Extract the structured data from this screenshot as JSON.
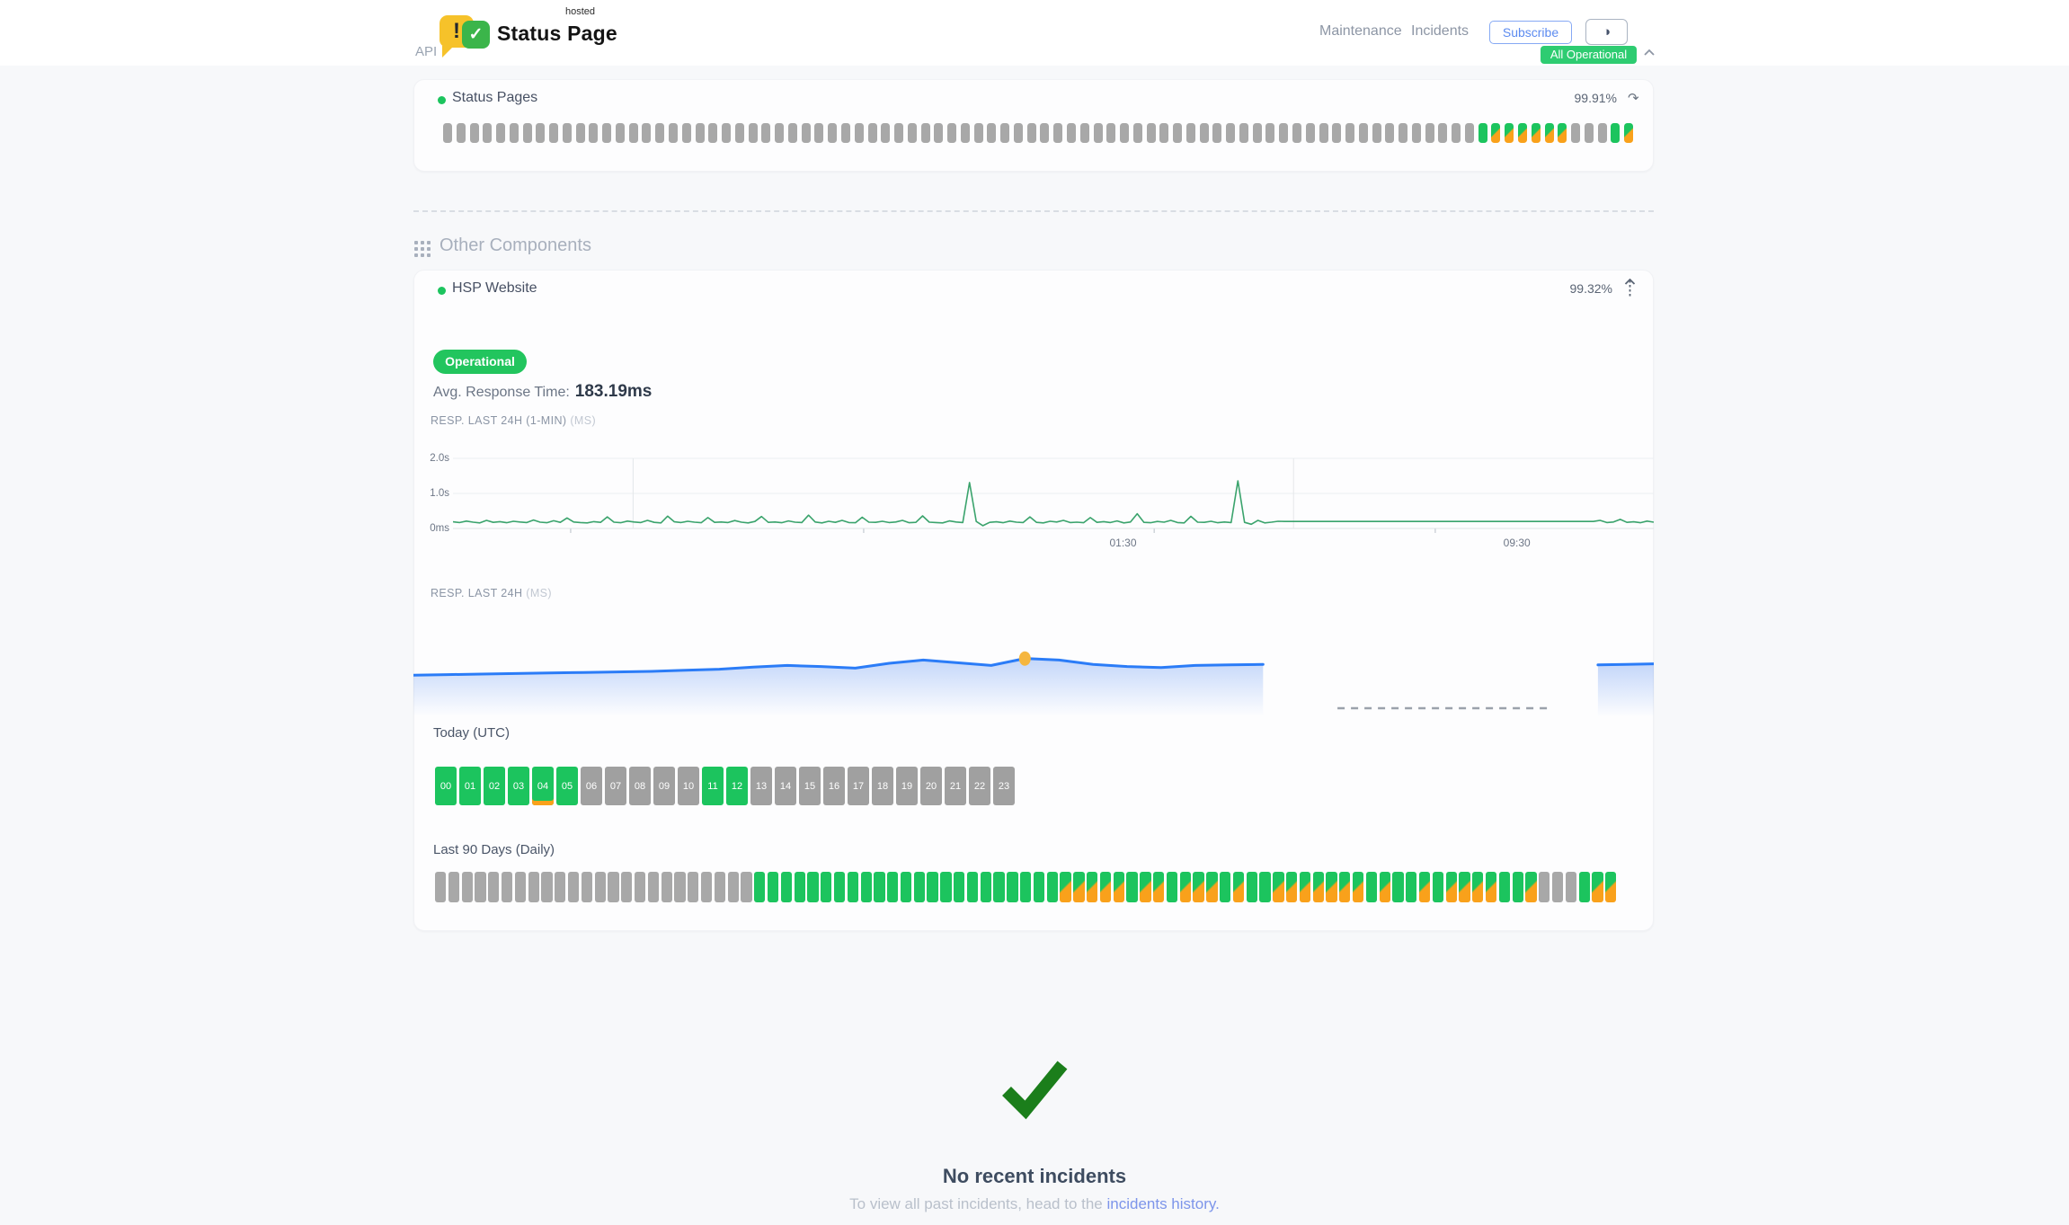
{
  "header": {
    "brand": {
      "title": "Status Page",
      "hosted_tag": "hosted",
      "bubble_char": "!",
      "check_char": "✓"
    },
    "nav": [
      {
        "label": "Maintenance"
      },
      {
        "label": "Incidents"
      }
    ],
    "subscribe_label": "Subscribe",
    "theme_icon": "◑",
    "status_badge": "All Operational"
  },
  "legend": {
    "u": "operational",
    "p": "partial-degradation",
    "n": "no-data"
  },
  "sections": {
    "api": {
      "title": "API",
      "component": {
        "name": "Status Pages",
        "uptime": "99.91%",
        "refresh_icon": "↷",
        "bars": [
          "n",
          "n",
          "n",
          "n",
          "n",
          "n",
          "n",
          "n",
          "n",
          "n",
          "n",
          "n",
          "n",
          "n",
          "n",
          "n",
          "n",
          "n",
          "n",
          "n",
          "n",
          "n",
          "n",
          "n",
          "n",
          "n",
          "n",
          "n",
          "n",
          "n",
          "n",
          "n",
          "n",
          "n",
          "n",
          "n",
          "n",
          "n",
          "n",
          "n",
          "n",
          "n",
          "n",
          "n",
          "n",
          "n",
          "n",
          "n",
          "n",
          "n",
          "n",
          "n",
          "n",
          "n",
          "n",
          "n",
          "n",
          "n",
          "n",
          "n",
          "n",
          "n",
          "n",
          "n",
          "n",
          "n",
          "n",
          "n",
          "n",
          "n",
          "n",
          "n",
          "n",
          "n",
          "n",
          "n",
          "n",
          "n",
          "u",
          "p",
          "p",
          "p",
          "p",
          "p",
          "p",
          "n",
          "n",
          "n",
          "u",
          "p"
        ]
      }
    },
    "other": {
      "title": "Other Components",
      "component": {
        "name": "HSP Website",
        "uptime": "99.32%",
        "status_label": "Operational",
        "avg_label": "Avg. Response Time:",
        "avg_value": "183.19ms",
        "resp1_label": "RESP. LAST 24H (1-MIN)",
        "resp1_unit": "(MS)",
        "resp2_label": "RESP. LAST 24H",
        "resp2_unit": "(MS)"
      }
    }
  },
  "today": {
    "title": "Today (UTC)",
    "marked_hour": "04",
    "hours": [
      {
        "label": "00",
        "state": "u"
      },
      {
        "label": "01",
        "state": "u"
      },
      {
        "label": "02",
        "state": "u"
      },
      {
        "label": "03",
        "state": "u"
      },
      {
        "label": "04",
        "state": "u"
      },
      {
        "label": "05",
        "state": "u"
      },
      {
        "label": "06",
        "state": "n"
      },
      {
        "label": "07",
        "state": "n"
      },
      {
        "label": "08",
        "state": "n"
      },
      {
        "label": "09",
        "state": "n"
      },
      {
        "label": "10",
        "state": "n"
      },
      {
        "label": "11",
        "state": "u"
      },
      {
        "label": "12",
        "state": "u"
      },
      {
        "label": "13",
        "state": "n"
      },
      {
        "label": "14",
        "state": "n"
      },
      {
        "label": "15",
        "state": "n"
      },
      {
        "label": "16",
        "state": "n"
      },
      {
        "label": "17",
        "state": "n"
      },
      {
        "label": "18",
        "state": "n"
      },
      {
        "label": "19",
        "state": "n"
      },
      {
        "label": "20",
        "state": "n"
      },
      {
        "label": "21",
        "state": "n"
      },
      {
        "label": "22",
        "state": "n"
      },
      {
        "label": "23",
        "state": "n"
      }
    ]
  },
  "last90": {
    "title": "Last 90 Days (Daily)",
    "days": [
      "n",
      "n",
      "n",
      "n",
      "n",
      "n",
      "n",
      "n",
      "n",
      "n",
      "n",
      "n",
      "n",
      "n",
      "n",
      "n",
      "n",
      "n",
      "n",
      "n",
      "n",
      "n",
      "n",
      "n",
      "u",
      "u",
      "u",
      "u",
      "u",
      "u",
      "u",
      "u",
      "u",
      "u",
      "u",
      "u",
      "u",
      "u",
      "u",
      "u",
      "u",
      "u",
      "u",
      "u",
      "u",
      "u",
      "u",
      "p",
      "p",
      "p",
      "p",
      "p",
      "u",
      "p",
      "p",
      "u",
      "p",
      "p",
      "p",
      "u",
      "p",
      "u",
      "u",
      "p",
      "p",
      "p",
      "p",
      "p",
      "p",
      "p",
      "u",
      "p",
      "u",
      "u",
      "p",
      "u",
      "p",
      "p",
      "p",
      "p",
      "u",
      "u",
      "p",
      "n",
      "n",
      "n",
      "u",
      "p",
      "p"
    ]
  },
  "incidents": {
    "title": "No recent incidents",
    "subtitle_prefix": "To view all past incidents, head to the ",
    "link_text": "incidents history."
  },
  "colors": {
    "operational_green": "#1cc45e",
    "degraded_orange": "#F9A11B",
    "no_data_gray": "#a8a8a8",
    "badge_green": "#2ecc71",
    "link_blue": "#7d95ea",
    "chart1_line": "#3aa36c",
    "chart2_line": "#2b7cf7",
    "marker_amber": "#F5B63F",
    "check_green": "#1b7e1b"
  },
  "chart_data": [
    {
      "type": "line",
      "title": "RESP. LAST 24H (1-MIN)",
      "unit": "MS",
      "ylabels": [
        "2.0s",
        "1.0s",
        "0ms"
      ],
      "ylim_ms": [
        0,
        2000
      ],
      "xticklabels": [
        "01:30",
        "09:30"
      ],
      "xtick_label_pos_pct": [
        55.8,
        88.6
      ],
      "xtick_marks_pct": [
        9.8,
        34.2,
        58.4,
        81.8
      ],
      "vgrid_pct": [
        15,
        70
      ],
      "grid": true,
      "series": [
        {
          "name": "response_ms",
          "values": [
            190,
            170,
            210,
            180,
            160,
            230,
            175,
            195,
            165,
            205,
            185,
            170,
            240,
            180,
            165,
            220,
            175,
            300,
            185,
            170,
            160,
            195,
            175,
            330,
            180,
            165,
            210,
            185,
            170,
            230,
            175,
            160,
            350,
            190,
            170,
            205,
            180,
            165,
            310,
            175,
            185,
            170,
            225,
            180,
            160,
            200,
            340,
            175,
            185,
            165,
            215,
            180,
            170,
            380,
            185,
            160,
            205,
            175,
            230,
            170,
            165,
            320,
            180,
            175,
            205,
            170,
            185,
            230,
            165,
            175,
            360,
            180,
            170,
            160,
            215,
            185,
            170,
            1310,
            200,
            80,
            175,
            190,
            165,
            210,
            180,
            170,
            330,
            175,
            160,
            205,
            185,
            230,
            170,
            180,
            165,
            310,
            175,
            195,
            170,
            215,
            160,
            185,
            420,
            175,
            165,
            200,
            180,
            230,
            170,
            160,
            345,
            180,
            175,
            205,
            165,
            185,
            170,
            1360,
            175,
            120,
            230,
            160,
            180,
            205,
            200,
            200,
            200,
            200,
            200,
            200,
            200,
            200,
            200,
            200,
            200,
            200,
            200,
            200,
            200,
            200,
            200,
            200,
            200,
            200,
            200,
            200,
            200,
            200,
            200,
            200,
            200,
            200,
            200,
            200,
            200,
            200,
            200,
            200,
            200,
            200,
            200,
            200,
            200,
            200,
            200,
            200,
            200,
            200,
            200,
            200,
            200,
            230,
            170,
            185,
            260,
            175,
            190,
            165,
            210,
            180
          ]
        }
      ]
    },
    {
      "type": "area",
      "title": "RESP. LAST 24H",
      "unit": "MS",
      "segments": [
        {
          "x_start_pct": 0,
          "x_end_pct": 68.5,
          "values": [
            168,
            169,
            170,
            171,
            172,
            173,
            174,
            175,
            177,
            179,
            183,
            186,
            184,
            181,
            190,
            196,
            191,
            186,
            199,
            196,
            188,
            184,
            182,
            186,
            187,
            188
          ]
        },
        {
          "x_start_pct": 95.5,
          "x_end_pct": 100,
          "values": [
            187,
            188,
            189
          ]
        }
      ],
      "no_data_dash": {
        "x_start_pct": 74.5,
        "x_end_pct": 91.5
      },
      "marker": {
        "x_pct": 49.3
      },
      "legend": "none"
    }
  ]
}
